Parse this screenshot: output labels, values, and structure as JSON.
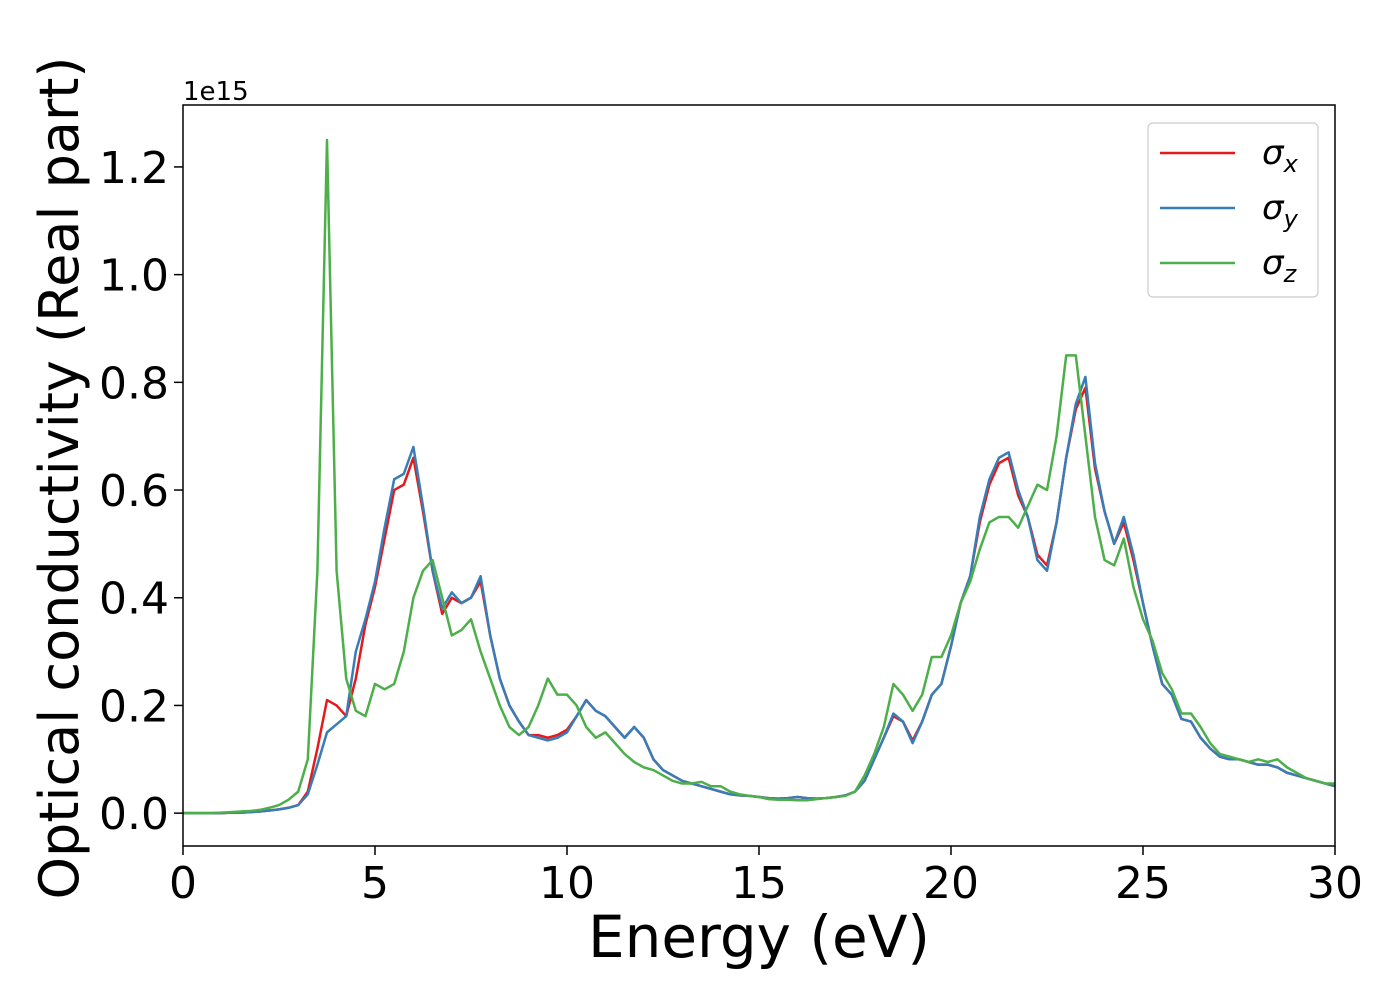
{
  "chart_data": {
    "type": "line",
    "x_label": "Energy (eV)",
    "y_label": "Optical conductivity (Real part)",
    "y_offset_label": "1e15",
    "xlim": [
      0,
      30
    ],
    "ylim": [
      -0.061,
      1.315
    ],
    "xticks": [
      0,
      5,
      10,
      15,
      20,
      25,
      30
    ],
    "yticks": [
      {
        "value": 0,
        "label": "0.0"
      },
      0.2,
      0.4,
      0.6,
      0.8,
      {
        "value": 1,
        "label": "1.0"
      },
      1.2
    ],
    "legend": "upper right",
    "x": [
      0,
      0.25,
      0.5,
      0.75,
      1,
      1.25,
      1.5,
      1.75,
      2,
      2.25,
      2.5,
      2.75,
      3,
      3.25,
      3.5,
      3.75,
      4,
      4.25,
      4.5,
      4.75,
      5,
      5.25,
      5.5,
      5.75,
      6,
      6.25,
      6.5,
      6.75,
      7,
      7.25,
      7.5,
      7.75,
      8,
      8.25,
      8.5,
      8.75,
      9,
      9.25,
      9.5,
      9.75,
      10,
      10.25,
      10.5,
      10.75,
      11,
      11.25,
      11.5,
      11.75,
      12,
      12.25,
      12.5,
      12.75,
      13,
      13.25,
      13.5,
      13.75,
      14,
      14.25,
      14.5,
      14.75,
      15,
      15.25,
      15.5,
      15.75,
      16,
      16.25,
      16.5,
      16.75,
      17,
      17.25,
      17.5,
      17.75,
      18,
      18.25,
      18.5,
      18.75,
      19,
      19.25,
      19.5,
      19.75,
      20,
      20.25,
      20.5,
      20.75,
      21,
      21.25,
      21.5,
      21.75,
      22,
      22.25,
      22.5,
      22.75,
      23,
      23.25,
      23.5,
      23.75,
      24,
      24.25,
      24.5,
      24.75,
      25,
      25.25,
      25.5,
      25.75,
      26,
      26.25,
      26.5,
      26.75,
      27,
      27.25,
      27.5,
      27.75,
      28,
      28.25,
      28.5,
      28.75,
      29,
      29.25,
      29.5,
      29.75,
      30
    ],
    "series": [
      {
        "name": "σx",
        "color": "#e41a1c",
        "values": [
          0,
          0,
          0,
          0,
          0,
          0.001,
          0.001,
          0.002,
          0.003,
          0.005,
          0.007,
          0.01,
          0.015,
          0.04,
          0.12,
          0.21,
          0.2,
          0.18,
          0.25,
          0.35,
          0.42,
          0.51,
          0.6,
          0.61,
          0.66,
          0.56,
          0.45,
          0.37,
          0.4,
          0.39,
          0.4,
          0.43,
          0.33,
          0.25,
          0.2,
          0.17,
          0.145,
          0.145,
          0.14,
          0.145,
          0.155,
          0.18,
          0.21,
          0.19,
          0.18,
          0.16,
          0.14,
          0.16,
          0.14,
          0.1,
          0.08,
          0.07,
          0.06,
          0.055,
          0.05,
          0.045,
          0.04,
          0.035,
          0.033,
          0.032,
          0.03,
          0.028,
          0.027,
          0.028,
          0.03,
          0.028,
          0.027,
          0.028,
          0.03,
          0.033,
          0.04,
          0.06,
          0.1,
          0.14,
          0.18,
          0.17,
          0.135,
          0.17,
          0.22,
          0.24,
          0.31,
          0.39,
          0.44,
          0.54,
          0.61,
          0.65,
          0.66,
          0.59,
          0.55,
          0.48,
          0.46,
          0.54,
          0.66,
          0.75,
          0.79,
          0.64,
          0.56,
          0.5,
          0.54,
          0.47,
          0.39,
          0.31,
          0.24,
          0.22,
          0.175,
          0.17,
          0.14,
          0.12,
          0.105,
          0.1,
          0.1,
          0.095,
          0.09,
          0.09,
          0.085,
          0.075,
          0.07,
          0.065,
          0.06,
          0.055,
          0.05
        ]
      },
      {
        "name": "σy",
        "color": "#377eb8",
        "values": [
          0,
          0,
          0,
          0,
          0,
          0.001,
          0.001,
          0.002,
          0.003,
          0.005,
          0.007,
          0.01,
          0.015,
          0.035,
          0.09,
          0.15,
          0.165,
          0.18,
          0.3,
          0.36,
          0.43,
          0.53,
          0.62,
          0.63,
          0.68,
          0.57,
          0.45,
          0.38,
          0.41,
          0.39,
          0.4,
          0.44,
          0.33,
          0.25,
          0.2,
          0.17,
          0.145,
          0.14,
          0.135,
          0.14,
          0.15,
          0.18,
          0.21,
          0.19,
          0.18,
          0.16,
          0.14,
          0.16,
          0.14,
          0.1,
          0.08,
          0.07,
          0.06,
          0.055,
          0.05,
          0.045,
          0.04,
          0.035,
          0.033,
          0.032,
          0.03,
          0.028,
          0.027,
          0.028,
          0.03,
          0.028,
          0.027,
          0.028,
          0.03,
          0.033,
          0.04,
          0.06,
          0.1,
          0.14,
          0.185,
          0.17,
          0.13,
          0.17,
          0.22,
          0.24,
          0.31,
          0.39,
          0.44,
          0.55,
          0.62,
          0.66,
          0.67,
          0.6,
          0.55,
          0.47,
          0.45,
          0.54,
          0.66,
          0.76,
          0.81,
          0.65,
          0.56,
          0.5,
          0.55,
          0.48,
          0.39,
          0.31,
          0.24,
          0.22,
          0.175,
          0.17,
          0.14,
          0.12,
          0.105,
          0.1,
          0.1,
          0.095,
          0.09,
          0.09,
          0.085,
          0.075,
          0.07,
          0.065,
          0.06,
          0.055,
          0.05
        ]
      },
      {
        "name": "σz",
        "color": "#4daf4a",
        "values": [
          0,
          0,
          0,
          0,
          0.001,
          0.002,
          0.003,
          0.004,
          0.006,
          0.01,
          0.015,
          0.025,
          0.04,
          0.1,
          0.45,
          1.25,
          0.45,
          0.25,
          0.19,
          0.18,
          0.24,
          0.23,
          0.24,
          0.3,
          0.4,
          0.45,
          0.47,
          0.4,
          0.33,
          0.34,
          0.36,
          0.3,
          0.25,
          0.2,
          0.16,
          0.145,
          0.16,
          0.2,
          0.25,
          0.22,
          0.22,
          0.2,
          0.16,
          0.14,
          0.15,
          0.13,
          0.11,
          0.095,
          0.085,
          0.08,
          0.07,
          0.06,
          0.055,
          0.055,
          0.058,
          0.05,
          0.05,
          0.04,
          0.035,
          0.032,
          0.03,
          0.026,
          0.025,
          0.025,
          0.024,
          0.024,
          0.026,
          0.028,
          0.03,
          0.032,
          0.04,
          0.07,
          0.11,
          0.16,
          0.24,
          0.22,
          0.19,
          0.22,
          0.29,
          0.29,
          0.33,
          0.39,
          0.43,
          0.49,
          0.54,
          0.55,
          0.55,
          0.53,
          0.57,
          0.61,
          0.6,
          0.7,
          0.85,
          0.85,
          0.7,
          0.55,
          0.47,
          0.46,
          0.51,
          0.42,
          0.36,
          0.32,
          0.26,
          0.23,
          0.185,
          0.185,
          0.16,
          0.13,
          0.11,
          0.105,
          0.1,
          0.095,
          0.1,
          0.095,
          0.1,
          0.085,
          0.075,
          0.065,
          0.06,
          0.055,
          0.055
        ]
      }
    ]
  }
}
